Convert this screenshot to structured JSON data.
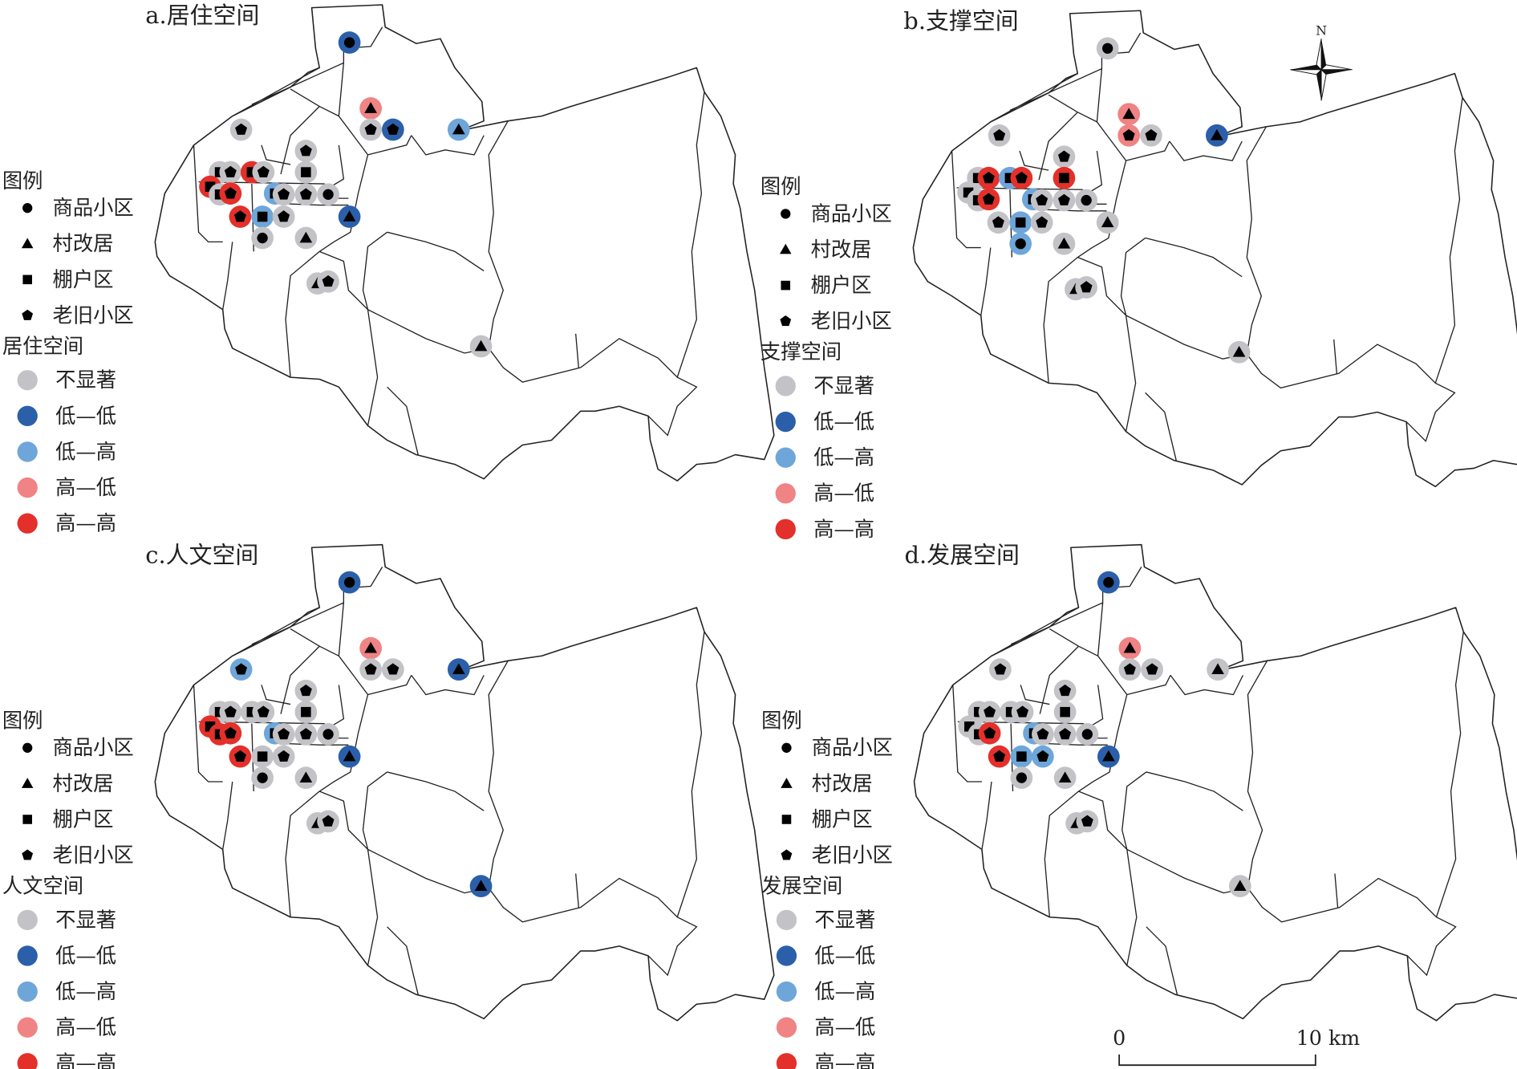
{
  "colors": {
    "NS": "#c3c3c7",
    "LL": "#2b5fa9",
    "LH": "#6ea6da",
    "HL": "#f08384",
    "HH": "#e3302b",
    "symbol": "#000000"
  },
  "legend_common": {
    "title": "图例",
    "types": [
      {
        "key": "circle",
        "label": "商品小区"
      },
      {
        "key": "triangle",
        "label": "村改居"
      },
      {
        "key": "square",
        "label": "棚户区"
      },
      {
        "key": "pentagon",
        "label": "老旧小区"
      }
    ],
    "classes": [
      {
        "key": "NS",
        "label": "不显著"
      },
      {
        "key": "LL",
        "label": "低—低"
      },
      {
        "key": "LH",
        "label": "低—高"
      },
      {
        "key": "HL",
        "label": "高—低"
      },
      {
        "key": "HH",
        "label": "高—高"
      }
    ]
  },
  "site_types": [
    "circle",
    "triangle",
    "pentagon",
    "pentagon",
    "triangle",
    "pentagon",
    "pentagon",
    "square",
    "square",
    "pentagon",
    "square",
    "pentagon",
    "square",
    "square",
    "pentagon",
    "square",
    "pentagon",
    "pentagon",
    "circle",
    "pentagon",
    "square",
    "pentagon",
    "triangle",
    "circle",
    "triangle",
    "triangle",
    "pentagon",
    "triangle"
  ],
  "panels": [
    {
      "title": "a.居住空间",
      "legend_heading": "居住空间",
      "classes": [
        "LL",
        "HL",
        "NS",
        "LL",
        "LH",
        "NS",
        "NS",
        "NS",
        "NS",
        "NS",
        "HH",
        "NS",
        "HH",
        "NS",
        "HH",
        "LH",
        "NS",
        "NS",
        "NS",
        "HH",
        "LH",
        "NS",
        "LL",
        "NS",
        "NS",
        "NS",
        "NS",
        "NS"
      ]
    },
    {
      "title": "b.支撑空间",
      "legend_heading": "支撑空间",
      "classes": [
        "NS",
        "HL",
        "HL",
        "NS",
        "LL",
        "NS",
        "NS",
        "HH",
        "NS",
        "HH",
        "LH",
        "HH",
        "NS",
        "NS",
        "HH",
        "LH",
        "NS",
        "NS",
        "NS",
        "NS",
        "LH",
        "NS",
        "NS",
        "LH",
        "NS",
        "NS",
        "NS",
        "NS"
      ]
    },
    {
      "title": "c.人文空间",
      "legend_heading": "人文空间",
      "classes": [
        "LL",
        "HL",
        "NS",
        "NS",
        "LL",
        "LH",
        "NS",
        "NS",
        "NS",
        "NS",
        "NS",
        "NS",
        "HH",
        "HH",
        "HH",
        "LH",
        "NS",
        "NS",
        "NS",
        "HH",
        "NS",
        "NS",
        "LL",
        "NS",
        "NS",
        "NS",
        "NS",
        "LL"
      ]
    },
    {
      "title": "d.发展空间",
      "legend_heading": "发展空间",
      "classes": [
        "LL",
        "HL",
        "NS",
        "NS",
        "NS",
        "NS",
        "NS",
        "NS",
        "NS",
        "NS",
        "NS",
        "NS",
        "NS",
        "NS",
        "HH",
        "LH",
        "NS",
        "NS",
        "NS",
        "HH",
        "LH",
        "LH",
        "LL",
        "NS",
        "NS",
        "NS",
        "NS",
        "NS"
      ]
    }
  ],
  "north_arrow": {
    "label": "N"
  },
  "scale_bar": {
    "start_label": "0",
    "end_label": "10 km"
  }
}
